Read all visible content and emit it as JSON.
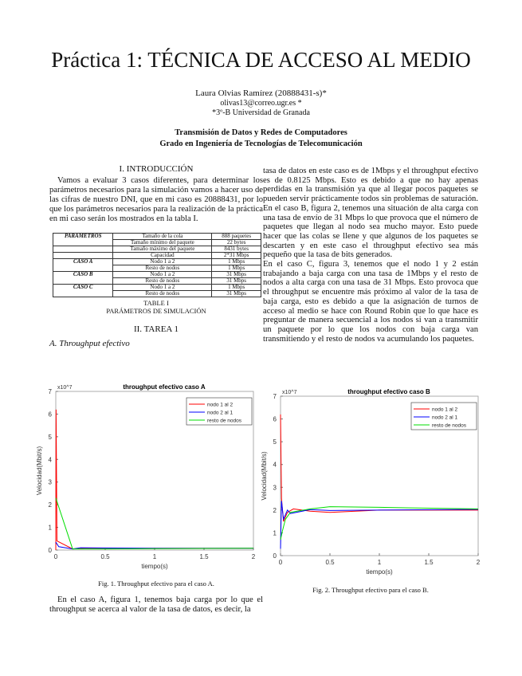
{
  "header": {
    "title": "Práctica 1: TÉCNICA DE ACCESO AL MEDIO",
    "author": "Laura Olvias Ramírez (20888431-s)*",
    "email": "olivas13@correo.ugr.es *",
    "affiliation": "*3º-B Universidad de Granada",
    "course": "Transmisión de Datos y Redes de Computadores",
    "degree": "Grado en Ingeniería de Tecnologías de Telecomunicación"
  },
  "intro": {
    "heading": "I. INTRODUCCIÓN",
    "paragraph": "Vamos a evaluar 3 casos diferentes, para determinar los parámetros necesarios para la simulación vamos a hacer uso de las cifras de nuestro DNI, que en mi caso es 20888431, por lo que los parámetros necesarios para la realización de la práctica en mi caso serán los mostrados en la tabla I."
  },
  "table": {
    "rows": [
      {
        "group": "PARAMETROS",
        "param": "Tamaño de la cola",
        "value": "888 paquetes"
      },
      {
        "group": "",
        "param": "Tamaño mínimo del paquete",
        "value": "22 bytes"
      },
      {
        "group": "",
        "param": "Tamaño máximo del paquete",
        "value": "8431 bytes"
      },
      {
        "group": "",
        "param": "Capacidad",
        "value": "2*31 Mbps"
      },
      {
        "group": "CASO A",
        "param": "Nodo 1 a 2",
        "value": "1 Mbps"
      },
      {
        "group": "",
        "param": "Resto de nodos",
        "value": "1 Mbps"
      },
      {
        "group": "CASO B",
        "param": "Nodo 1 a 2",
        "value": "31 Mbps"
      },
      {
        "group": "",
        "param": "Resto de nodos",
        "value": "31 Mbps"
      },
      {
        "group": "CASO C",
        "param": "Nodo 1 a 2",
        "value": "1 Mbps"
      },
      {
        "group": "",
        "param": "Resto de nodos",
        "value": "31 Mbps"
      }
    ],
    "label": "TABLE I",
    "caption": "PARÁMETROS DE SIMULACIÓN"
  },
  "task": {
    "heading": "II. TAREA 1",
    "subheading": "A. Throughput efectivo"
  },
  "figures": [
    {
      "caption": "Fig. 1.   Throughput efectivo para el caso A."
    },
    {
      "caption": "Fig. 2.   Throughput efectivo para el caso B."
    }
  ],
  "left_paragraph": "En el caso A, figura 1, tenemos baja carga por lo que el throughput se acerca al valor de la tasa de datos, es decir, la",
  "right_paragraphs": [
    "tasa de datos en este caso es de 1Mbps y el throughput efectivo es de 0.8125 Mbps. Esto es debido a que no hay apenas perdidas en la transmisión ya que al llegar pocos paquetes se pueden servir prácticamente todos sin problemas de saturación. En el caso B, figura 2, tenemos una situación de alta carga con una tasa de envío de 31 Mbps lo que provoca que el número de paquetes que llegan al nodo sea mucho mayor. Esto puede hacer que las colas se llene y que algunos de los paquetes se descarten y en este caso el throughput efectivo sea más pequeño que la tasa de bits generados.",
    "En el caso C, figura 3, tenemos que el nodo 1 y 2 están trabajando a baja carga con una tasa de 1Mbps y el resto de nodos a alta carga con una tasa de 31 Mbps. Esto provoca que el throughput se encuentre más próximo al valor de la tasa de baja carga, esto es debido a que la asignación de turnos de acceso al medio se hace con Round Robin que lo que hace es preguntar de manera secuencial a los nodos si van a transmitir un paquete por lo que los nodos con baja carga van transmitiendo y el resto de nodos va acumulando los paquetes."
  ],
  "chart_data": [
    {
      "type": "line",
      "title": "throughput efectivo caso A",
      "xlabel": "tiempo(s)",
      "ylabel": "Velocidad(Mbit/s)",
      "y_multiplier": "x10^7",
      "xlim": [
        0,
        2
      ],
      "ylim": [
        0,
        7
      ],
      "xticks": [
        "0",
        "0.5",
        "1",
        "1.5",
        "2"
      ],
      "yticks": [
        "0",
        "1",
        "2",
        "3",
        "4",
        "5",
        "6",
        "7"
      ],
      "legend": "top-right",
      "grid": false,
      "series": [
        {
          "name": "nodo 1 al 2",
          "color": "#ff0000",
          "points": [
            [
              0,
              0
            ],
            [
              0.003,
              6.2
            ],
            [
              0.012,
              0.4
            ],
            [
              0.17,
              0.05
            ],
            [
              0.3,
              0.08
            ],
            [
              1,
              0.08
            ],
            [
              2,
              0.08
            ]
          ]
        },
        {
          "name": "nodo 2 al 1",
          "color": "#0000ff",
          "points": [
            [
              0,
              0.35
            ],
            [
              0.03,
              0.15
            ],
            [
              0.17,
              0.05
            ],
            [
              0.25,
              0.1
            ],
            [
              1,
              0.08
            ],
            [
              2,
              0.08
            ]
          ]
        },
        {
          "name": "resto de nodos",
          "color": "#00dd00",
          "points": [
            [
              0,
              2.3
            ],
            [
              0.17,
              0.05
            ],
            [
              0.5,
              0.05
            ],
            [
              1,
              0.06
            ],
            [
              2,
              0.08
            ]
          ]
        }
      ]
    },
    {
      "type": "line",
      "title": "throughput efectivo caso B",
      "xlabel": "tiempo(s)",
      "ylabel": "Velocidad(Mbit/s)",
      "y_multiplier": "x10^7",
      "xlim": [
        0,
        2
      ],
      "ylim": [
        0,
        7
      ],
      "xticks": [
        "0",
        "0.5",
        "1",
        "1.5",
        "2"
      ],
      "yticks": [
        "0",
        "1",
        "2",
        "3",
        "4",
        "5",
        "6",
        "7"
      ],
      "legend": "top-right",
      "grid": false,
      "series": [
        {
          "name": "nodo 1 al 2",
          "color": "#ff0000",
          "points": [
            [
              0,
              6.2
            ],
            [
              0.01,
              2.5
            ],
            [
              0.03,
              1.5
            ],
            [
              0.07,
              1.9
            ],
            [
              0.13,
              2.05
            ],
            [
              0.3,
              1.95
            ],
            [
              0.5,
              1.9
            ],
            [
              1,
              2.0
            ],
            [
              2,
              2.0
            ]
          ]
        },
        {
          "name": "nodo 2 al 1",
          "color": "#0000ff",
          "points": [
            [
              0,
              0.3
            ],
            [
              0.01,
              2.4
            ],
            [
              0.03,
              1.6
            ],
            [
              0.07,
              2.0
            ],
            [
              0.1,
              1.85
            ],
            [
              0.3,
              2.02
            ],
            [
              0.5,
              1.98
            ],
            [
              1,
              2.0
            ],
            [
              2,
              2.03
            ]
          ]
        },
        {
          "name": "resto de nodos",
          "color": "#00dd00",
          "points": [
            [
              0,
              0.7
            ],
            [
              0.02,
              1.1
            ],
            [
              0.05,
              1.6
            ],
            [
              0.1,
              1.9
            ],
            [
              0.3,
              2.05
            ],
            [
              0.5,
              2.15
            ],
            [
              1,
              2.12
            ],
            [
              2,
              2.05
            ]
          ]
        }
      ]
    }
  ]
}
